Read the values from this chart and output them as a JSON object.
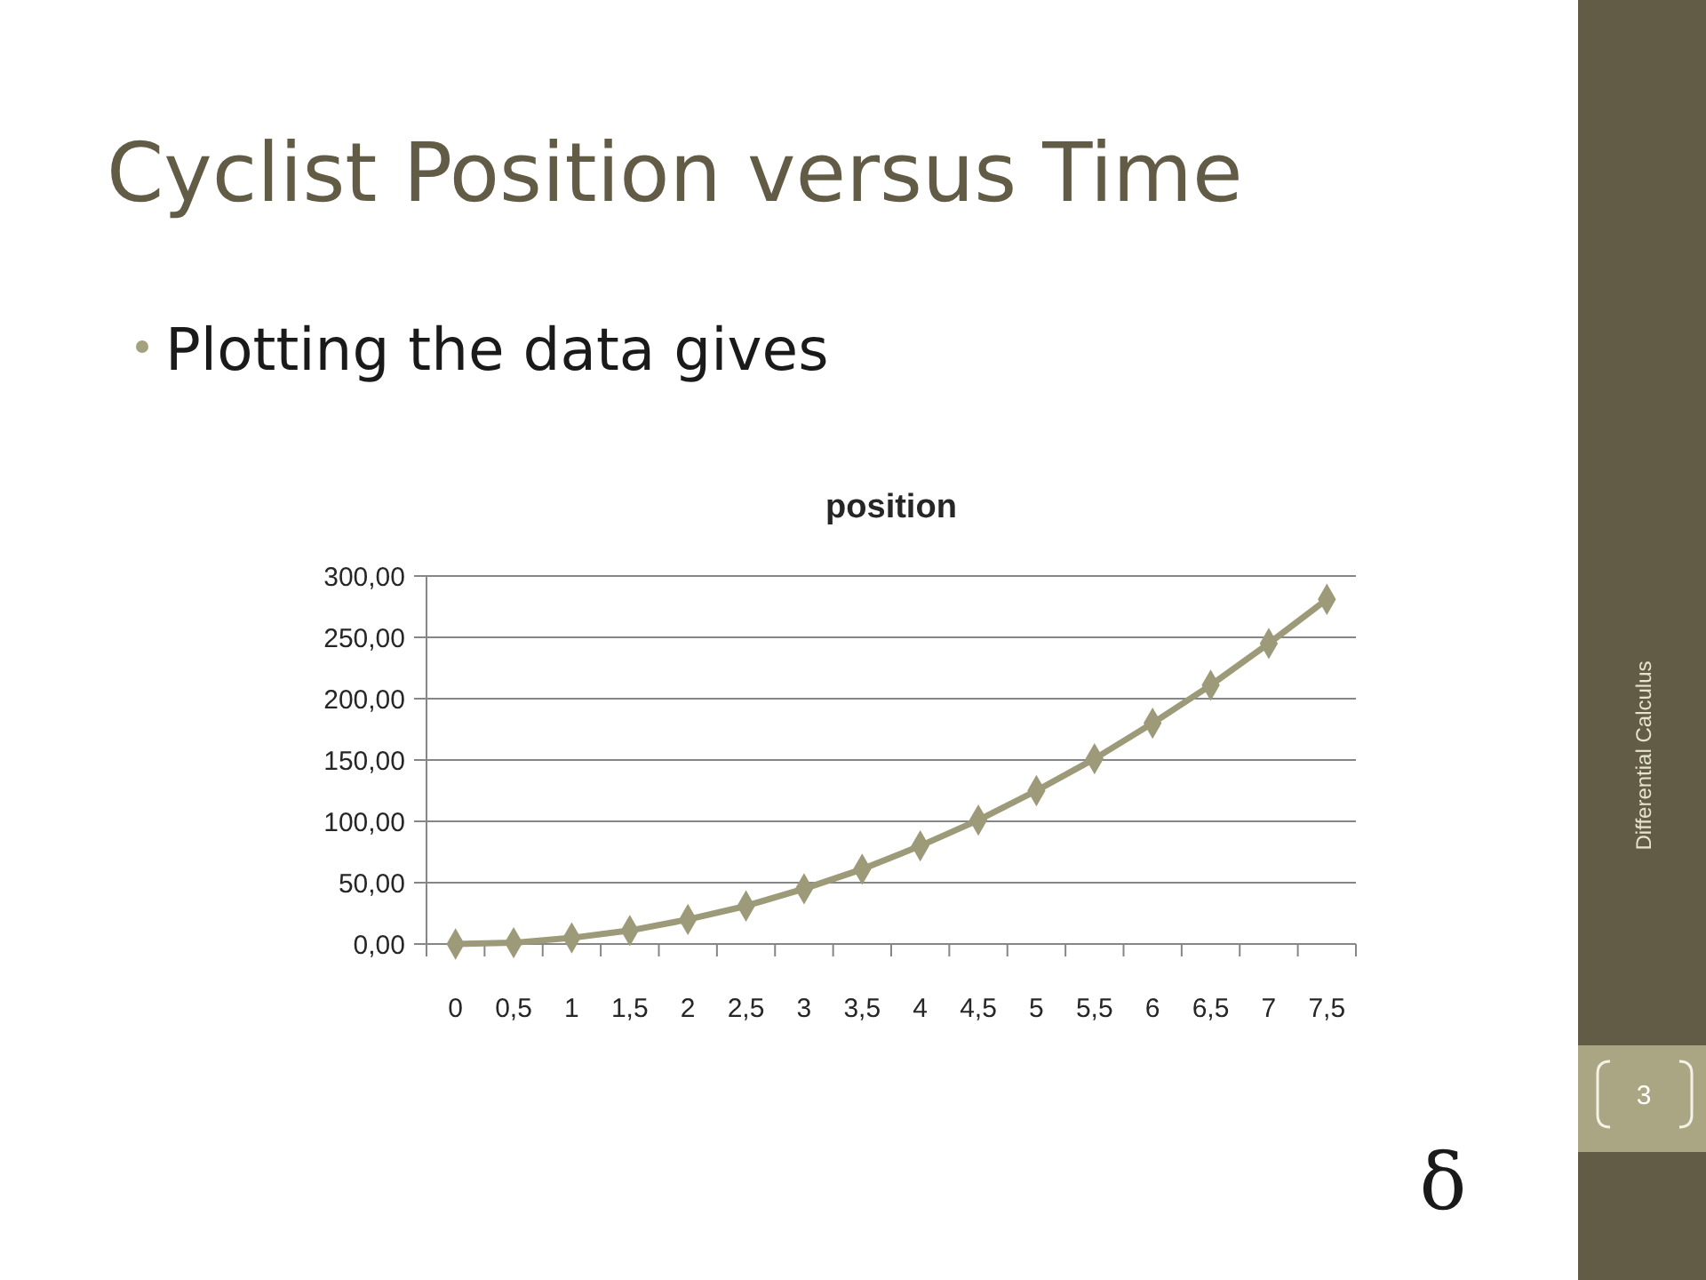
{
  "chart_data": {
    "type": "line",
    "title": "position",
    "annotations": [
      "Cyclist Position versus Time",
      "Plotting the data gives",
      "Differential Calculus",
      "3",
      "δ"
    ],
    "categories": [
      "0",
      "0,5",
      "1",
      "1,5",
      "2",
      "2,5",
      "3",
      "3,5",
      "4",
      "4,5",
      "5",
      "5,5",
      "6",
      "6,5",
      "7",
      "7,5"
    ],
    "series": [
      {
        "color": "#9c9a78",
        "values": [
          0,
          1,
          5,
          11,
          20,
          31,
          45,
          61,
          80,
          101,
          125,
          151,
          180,
          211,
          245,
          281
        ]
      }
    ],
    "ylim": [
      0,
      300
    ],
    "yticks": [
      {
        "value": 0,
        "label": "0,00"
      },
      {
        "value": 50,
        "label": "50,00"
      },
      {
        "value": 100,
        "label": "100,00"
      },
      {
        "value": 150,
        "label": "150,00"
      },
      {
        "value": 200,
        "label": "200,00"
      },
      {
        "value": 250,
        "label": "250,00"
      },
      {
        "value": 300,
        "label": "300,00"
      }
    ],
    "grid": "y",
    "marker": "diamond",
    "line_style": "solid"
  }
}
